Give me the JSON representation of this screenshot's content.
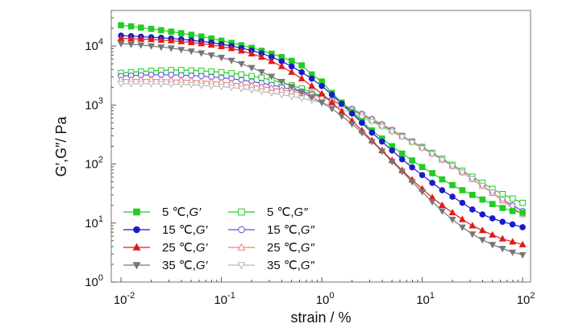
{
  "chart_data": {
    "type": "line",
    "xlabel": "strain / %",
    "ylabel": "G′,G″/ Pa",
    "xscale": "log",
    "yscale": "log",
    "xlim": [
      0.008,
      120
    ],
    "ylim": [
      1,
      40000
    ],
    "x_ticks": [
      0.01,
      0.1,
      1,
      10,
      100
    ],
    "y_ticks": [
      1,
      10,
      100,
      1000,
      10000
    ],
    "x_tick_labels": [
      {
        "base": "10",
        "exp": "-2"
      },
      {
        "base": "10",
        "exp": "-1"
      },
      {
        "base": "10",
        "exp": "0"
      },
      {
        "base": "10",
        "exp": "1"
      },
      {
        "base": "10",
        "exp": "2"
      }
    ],
    "y_tick_labels": [
      {
        "base": "10",
        "exp": "0"
      },
      {
        "base": "10",
        "exp": "1"
      },
      {
        "base": "10",
        "exp": "2"
      },
      {
        "base": "10",
        "exp": "3"
      },
      {
        "base": "10",
        "exp": "4"
      }
    ],
    "legend_position": "bottom-left",
    "legend_columns": 2,
    "series": [
      {
        "name": "5 ℃,G′",
        "prefix": "5 ℃,",
        "italic": "G′",
        "color": "#22cc22",
        "marker": "square",
        "filled": true,
        "x": [
          0.01,
          0.0126,
          0.0158,
          0.02,
          0.0251,
          0.0316,
          0.0398,
          0.0501,
          0.0631,
          0.0794,
          0.1,
          0.126,
          0.158,
          0.2,
          0.251,
          0.316,
          0.398,
          0.501,
          0.631,
          0.794,
          1,
          1.26,
          1.58,
          2,
          2.51,
          3.16,
          3.98,
          5.01,
          6.31,
          7.94,
          10,
          12.6,
          15.8,
          20,
          25.1,
          31.6,
          39.8,
          50.1,
          63.1,
          79.4,
          100
        ],
        "values": [
          22500,
          21500,
          20500,
          19500,
          18500,
          17500,
          16500,
          15500,
          14500,
          13400,
          12300,
          11300,
          10300,
          9300,
          8300,
          7400,
          6500,
          5600,
          4700,
          3300,
          2500,
          1600,
          1100,
          760,
          530,
          370,
          270,
          200,
          150,
          115,
          89,
          70,
          55,
          44,
          36,
          30,
          25,
          21,
          18,
          16,
          15
        ]
      },
      {
        "name": "15 ℃,G′",
        "prefix": "15 ℃,",
        "italic": "G′",
        "color": "#1a1acc",
        "marker": "circle",
        "filled": true,
        "x": [
          0.01,
          0.0126,
          0.0158,
          0.02,
          0.0251,
          0.0316,
          0.0398,
          0.0501,
          0.0631,
          0.0794,
          0.1,
          0.126,
          0.158,
          0.2,
          0.251,
          0.316,
          0.398,
          0.501,
          0.631,
          0.794,
          1,
          1.26,
          1.58,
          2,
          2.51,
          3.16,
          3.98,
          5.01,
          6.31,
          7.94,
          10,
          12.6,
          15.8,
          20,
          25.1,
          31.6,
          39.8,
          50.1,
          63.1,
          79.4,
          100
        ],
        "values": [
          15000,
          14700,
          14400,
          14100,
          13800,
          13400,
          13000,
          12500,
          12000,
          11400,
          10700,
          10000,
          9200,
          8400,
          7500,
          6500,
          5500,
          4500,
          3600,
          2800,
          2100,
          1500,
          1050,
          720,
          500,
          340,
          240,
          170,
          120,
          88,
          65,
          48,
          36,
          28,
          22,
          17,
          14,
          12,
          10.5,
          9.5,
          8.5
        ]
      },
      {
        "name": "25 ℃,G′",
        "prefix": "25 ℃,",
        "italic": "G′",
        "color": "#e01a1a",
        "marker": "triangle-up",
        "filled": true,
        "x": [
          0.01,
          0.0126,
          0.0158,
          0.02,
          0.0251,
          0.0316,
          0.0398,
          0.0501,
          0.0631,
          0.0794,
          0.1,
          0.126,
          0.158,
          0.2,
          0.251,
          0.316,
          0.398,
          0.501,
          0.631,
          0.794,
          1,
          1.26,
          1.58,
          2,
          2.51,
          3.16,
          3.98,
          5.01,
          6.31,
          7.94,
          10,
          12.6,
          15.8,
          20,
          25.1,
          31.6,
          39.8,
          50.1,
          63.1,
          79.4,
          100
        ],
        "values": [
          13500,
          13300,
          13100,
          12900,
          12600,
          12300,
          11900,
          11500,
          11000,
          10400,
          9800,
          9100,
          8300,
          7400,
          6500,
          5500,
          4500,
          3600,
          2800,
          2100,
          1550,
          1100,
          780,
          540,
          370,
          250,
          170,
          115,
          78,
          54,
          38,
          27,
          20,
          15,
          11.5,
          9,
          7.5,
          6.3,
          5.4,
          4.8,
          4.3
        ]
      },
      {
        "name": "35 ℃,G′",
        "prefix": "35 ℃,",
        "italic": "G′",
        "color": "#777777",
        "marker": "triangle-down",
        "filled": true,
        "x": [
          0.01,
          0.0126,
          0.0158,
          0.02,
          0.0251,
          0.0316,
          0.0398,
          0.0501,
          0.0631,
          0.0794,
          0.1,
          0.126,
          0.158,
          0.2,
          0.251,
          0.316,
          0.398,
          0.501,
          0.631,
          0.794,
          1,
          1.26,
          1.58,
          2,
          2.51,
          3.16,
          3.98,
          5.01,
          6.31,
          7.94,
          10,
          12.6,
          15.8,
          20,
          25.1,
          31.6,
          39.8,
          50.1,
          63.1,
          79.4,
          100
        ],
        "values": [
          11000,
          10700,
          10400,
          10000,
          9600,
          9200,
          8700,
          8200,
          7600,
          7000,
          6400,
          5700,
          5000,
          4300,
          3650,
          3050,
          2500,
          2050,
          1650,
          1350,
          1100,
          870,
          650,
          480,
          340,
          240,
          165,
          110,
          75,
          50,
          34,
          23,
          16,
          11.5,
          8.5,
          6.5,
          5.2,
          4.3,
          3.7,
          3.2,
          2.9
        ]
      },
      {
        "name": "5 ℃,G″",
        "prefix": "5 ℃,",
        "italic": "G″",
        "color": "#22cc22",
        "marker": "square",
        "filled": false,
        "x": [
          0.01,
          0.0126,
          0.0158,
          0.02,
          0.0251,
          0.0316,
          0.0398,
          0.0501,
          0.0631,
          0.0794,
          0.1,
          0.126,
          0.158,
          0.2,
          0.251,
          0.316,
          0.398,
          0.501,
          0.631,
          0.794,
          1,
          1.26,
          1.58,
          2,
          2.51,
          3.16,
          3.98,
          5.01,
          6.31,
          7.94,
          10,
          12.6,
          15.8,
          20,
          25.1,
          31.6,
          39.8,
          50.1,
          63.1,
          79.4,
          100
        ],
        "values": [
          3500,
          3600,
          3700,
          3800,
          3850,
          3900,
          3900,
          3850,
          3800,
          3700,
          3600,
          3450,
          3300,
          3100,
          2900,
          2650,
          2400,
          2150,
          1900,
          1650,
          1400,
          1180,
          990,
          820,
          670,
          550,
          450,
          370,
          300,
          240,
          195,
          155,
          123,
          97,
          77,
          61,
          48,
          38,
          31,
          26,
          22
        ]
      },
      {
        "name": "15 ℃,G″",
        "prefix": "15 ℃,",
        "italic": "G″",
        "color": "#5555dd",
        "marker": "circle",
        "filled": false,
        "x": [
          0.01,
          0.0126,
          0.0158,
          0.02,
          0.0251,
          0.0316,
          0.0398,
          0.0501,
          0.0631,
          0.0794,
          0.1,
          0.126,
          0.158,
          0.2,
          0.251,
          0.316,
          0.398,
          0.501,
          0.631,
          0.794,
          1,
          1.26,
          1.58,
          2,
          2.51,
          3.16,
          3.98,
          5.01,
          6.31,
          7.94,
          10,
          12.6,
          15.8,
          20,
          25.1,
          31.6,
          39.8,
          50.1,
          63.1,
          79.4,
          100
        ],
        "values": [
          3100,
          3150,
          3200,
          3250,
          3250,
          3250,
          3200,
          3150,
          3100,
          3000,
          2900,
          2800,
          2650,
          2500,
          2350,
          2200,
          2000,
          1850,
          1700,
          1550,
          1400,
          1210,
          1030,
          860,
          710,
          580,
          470,
          380,
          300,
          240,
          190,
          150,
          118,
          92,
          72,
          56,
          43,
          33,
          25,
          20,
          16
        ]
      },
      {
        "name": "25 ℃,G″",
        "prefix": "25 ℃,",
        "italic": "G″",
        "color": "#f08080",
        "marker": "triangle-up",
        "filled": false,
        "x": [
          0.01,
          0.0126,
          0.0158,
          0.02,
          0.0251,
          0.0316,
          0.0398,
          0.0501,
          0.0631,
          0.0794,
          0.1,
          0.126,
          0.158,
          0.2,
          0.251,
          0.316,
          0.398,
          0.501,
          0.631,
          0.794,
          1,
          1.26,
          1.58,
          2,
          2.51,
          3.16,
          3.98,
          5.01,
          6.31,
          7.94,
          10,
          12.6,
          15.8,
          20,
          25.1,
          31.6,
          39.8,
          50.1,
          63.1,
          79.4,
          100
        ],
        "values": [
          2700,
          2700,
          2700,
          2700,
          2700,
          2650,
          2650,
          2600,
          2550,
          2500,
          2450,
          2350,
          2250,
          2150,
          2050,
          1950,
          1800,
          1700,
          1600,
          1480,
          1350,
          1180,
          1010,
          850,
          700,
          580,
          470,
          380,
          300,
          240,
          190,
          150,
          118,
          92,
          72,
          55,
          42,
          32,
          24,
          18,
          14
        ]
      },
      {
        "name": "35 ℃,G″",
        "prefix": "35 ℃,",
        "italic": "G″",
        "color": "#b8b8b8",
        "marker": "triangle-down",
        "filled": false,
        "x": [
          0.01,
          0.0126,
          0.0158,
          0.02,
          0.0251,
          0.0316,
          0.0398,
          0.0501,
          0.0631,
          0.0794,
          0.1,
          0.126,
          0.158,
          0.2,
          0.251,
          0.316,
          0.398,
          0.501,
          0.631,
          0.794,
          1,
          1.26,
          1.58,
          2,
          2.51,
          3.16,
          3.98,
          5.01,
          6.31,
          7.94,
          10,
          12.6,
          15.8,
          20,
          25.1,
          31.6,
          39.8,
          50.1,
          63.1,
          79.4,
          100
        ],
        "values": [
          2300,
          2300,
          2300,
          2300,
          2280,
          2250,
          2230,
          2200,
          2150,
          2100,
          2050,
          1980,
          1900,
          1800,
          1700,
          1600,
          1500,
          1400,
          1300,
          1200,
          1100,
          970,
          850,
          730,
          620,
          520,
          430,
          350,
          285,
          230,
          185,
          148,
          117,
          92,
          72,
          56,
          43,
          33,
          25,
          19,
          14
        ]
      }
    ]
  }
}
